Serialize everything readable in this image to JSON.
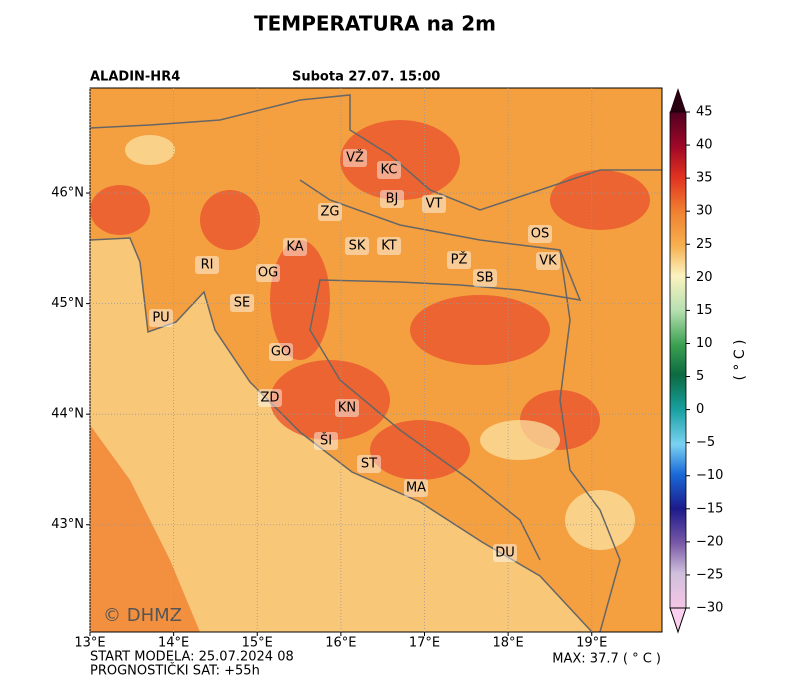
{
  "header": {
    "title": "TEMPERATURA na 2m",
    "model": "ALADIN-HR4",
    "date": "Subota 27.07. 15:00"
  },
  "map": {
    "xlim": [
      13,
      19.84
    ],
    "ylim": [
      42.03,
      46.95
    ],
    "xticks": [
      {
        "value": 13,
        "label": "13°E"
      },
      {
        "value": 14,
        "label": "14°E"
      },
      {
        "value": 15,
        "label": "15°E"
      },
      {
        "value": 16,
        "label": "16°E"
      },
      {
        "value": 17,
        "label": "17°E"
      },
      {
        "value": 18,
        "label": "18°E"
      },
      {
        "value": 19,
        "label": "19°E"
      }
    ],
    "yticks": [
      {
        "value": 43,
        "label": "43°N"
      },
      {
        "value": 44,
        "label": "44°N"
      },
      {
        "value": 45,
        "label": "45°N"
      },
      {
        "value": 46,
        "label": "46°N"
      }
    ],
    "cities": [
      "VŽ",
      "KC",
      "BJ",
      "VT",
      "ZG",
      "KA",
      "SK",
      "KT",
      "OS",
      "PŽ",
      "VK",
      "SB",
      "RI",
      "OG",
      "SE",
      "PU",
      "GO",
      "ZD",
      "KN",
      "ŠI",
      "ST",
      "MA",
      "DU"
    ],
    "copyright": "© DHMZ"
  },
  "colorbar": {
    "label": "( ° C )",
    "clim": [
      -30,
      45
    ],
    "ticks": [
      45,
      40,
      35,
      30,
      25,
      20,
      15,
      10,
      5,
      0,
      {
        "value": -5,
        "label": "−5"
      },
      {
        "value": -10,
        "label": "−10"
      },
      {
        "value": -15,
        "label": "−15"
      },
      {
        "value": -20,
        "label": "−20"
      },
      {
        "value": -25,
        "label": "−25"
      },
      {
        "value": -30,
        "label": "−30"
      }
    ]
  },
  "footer": {
    "start": "START MODELA: 25.07.2024 08",
    "forecast": "PROGNOSTIČKI SAT: +55h",
    "max": "MAX: 37.7 ( ° C )"
  }
}
